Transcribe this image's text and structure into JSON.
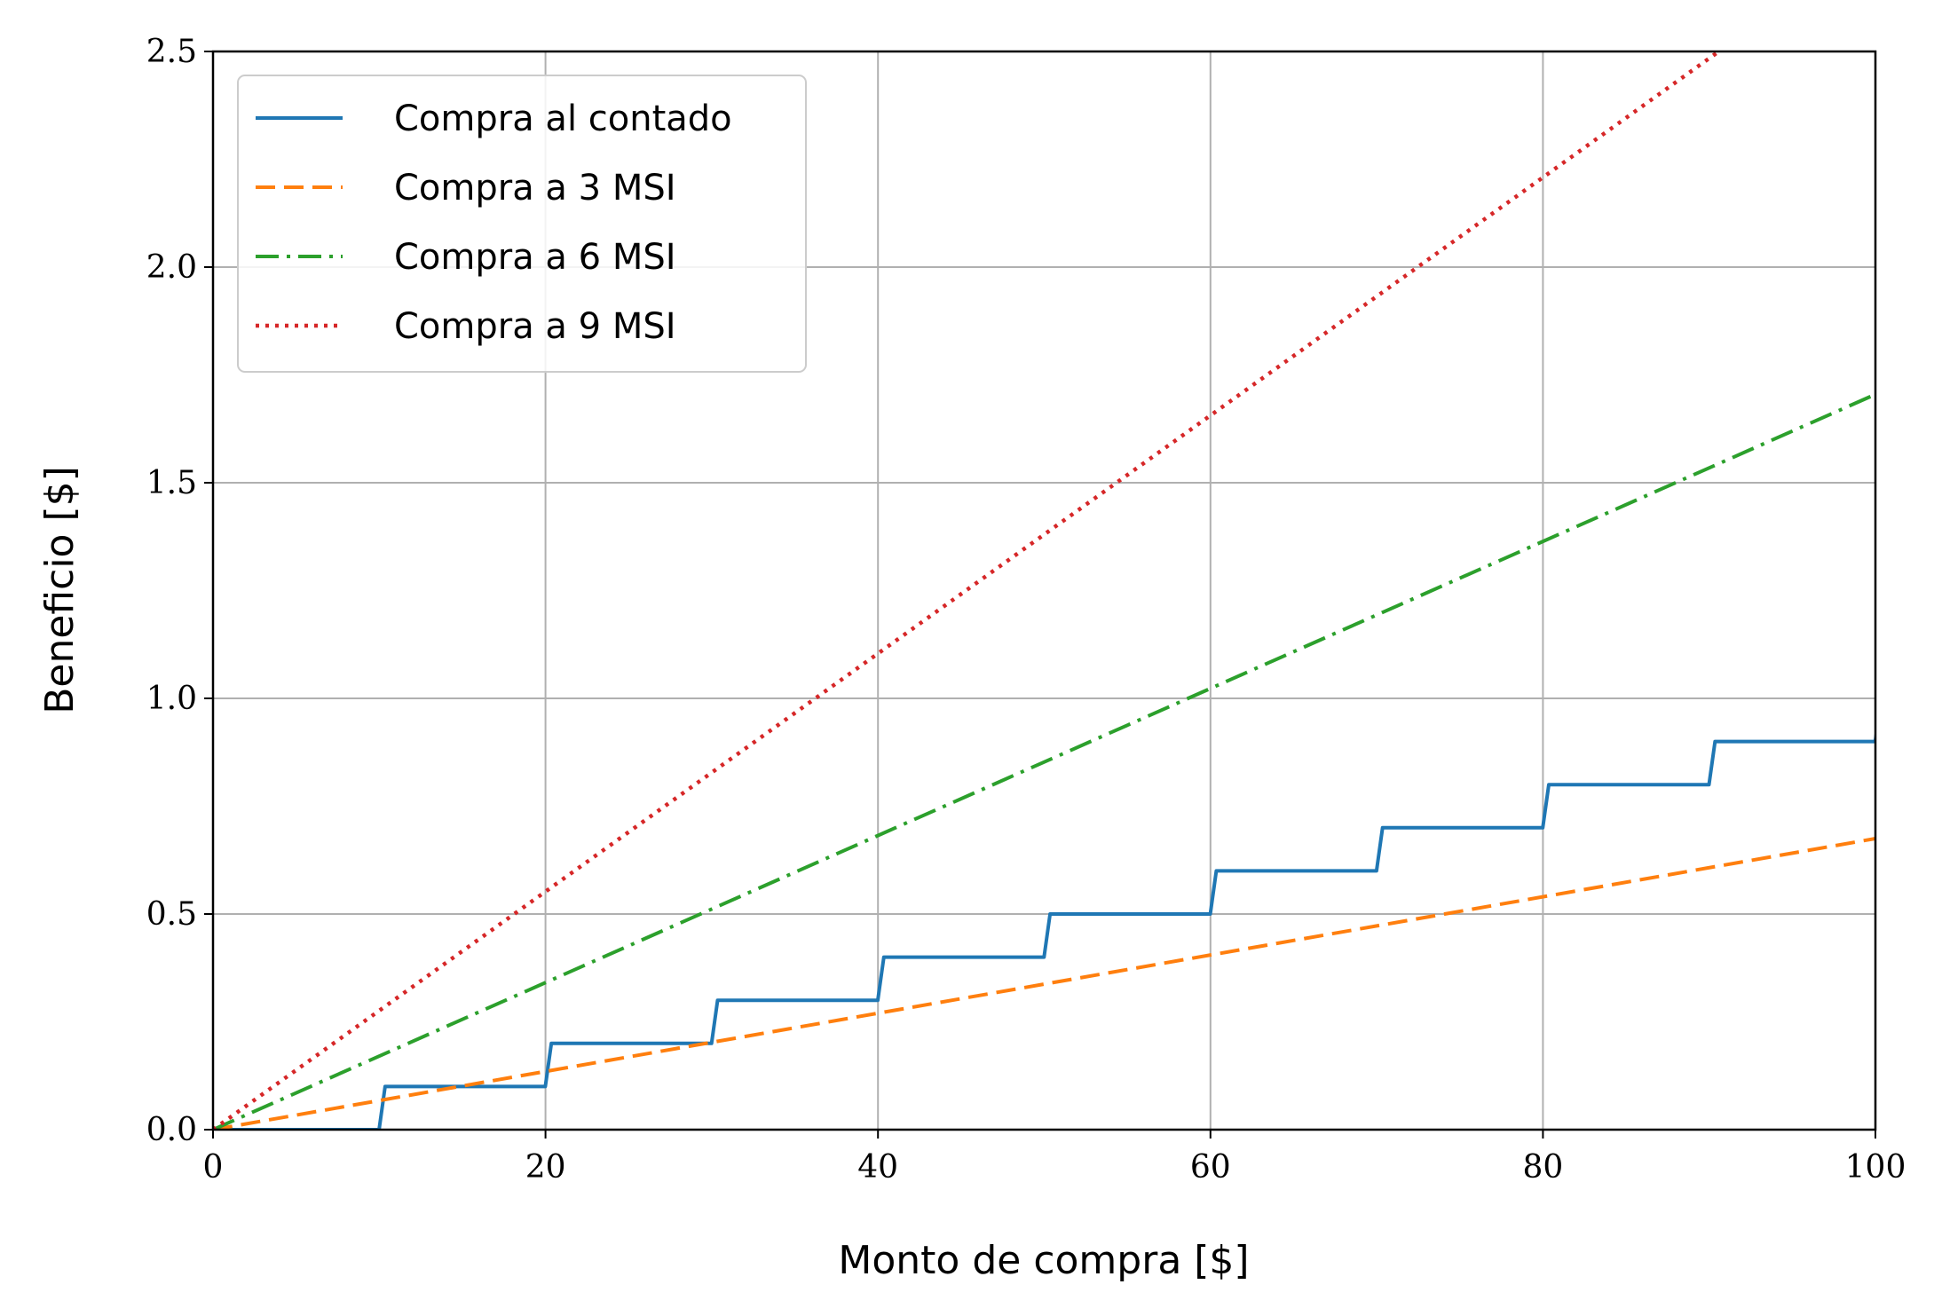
{
  "chart_data": {
    "type": "line",
    "xlabel": "Monto de compra [$]",
    "ylabel": "Beneficio [$]",
    "xlim": [
      0,
      100
    ],
    "ylim": [
      0,
      2.5
    ],
    "xticks": [
      0,
      20,
      40,
      60,
      80,
      100
    ],
    "xtick_labels": [
      "0",
      "20",
      "40",
      "60",
      "80",
      "100"
    ],
    "yticks": [
      0,
      0.5,
      1.0,
      1.5,
      2.0,
      2.5
    ],
    "ytick_labels": [
      "0.0",
      "0.5",
      "1.0",
      "1.5",
      "2.0",
      "2.5"
    ],
    "grid": true,
    "legend_position": "top-left",
    "series": [
      {
        "name": "Compra al contado",
        "color": "#1f77b4",
        "style": "solid",
        "kind": "step",
        "x": [
          0,
          10,
          20,
          30,
          40,
          50,
          60,
          70,
          80,
          90,
          100
        ],
        "y": [
          0,
          0.1,
          0.2,
          0.3,
          0.4,
          0.5,
          0.6,
          0.7,
          0.8,
          0.9,
          1.0
        ]
      },
      {
        "name": "Compra a 3 MSI",
        "color": "#ff7f0e",
        "style": "dashed",
        "kind": "line",
        "x": [
          0,
          100
        ],
        "y": [
          0,
          0.675
        ]
      },
      {
        "name": "Compra a 6 MSI",
        "color": "#2ca02c",
        "style": "dashdot",
        "kind": "line",
        "x": [
          0,
          100
        ],
        "y": [
          0,
          1.705
        ]
      },
      {
        "name": "Compra a 9 MSI",
        "color": "#d62728",
        "style": "dotted",
        "kind": "line",
        "x": [
          0,
          100
        ],
        "y": [
          0,
          2.76
        ]
      }
    ]
  }
}
